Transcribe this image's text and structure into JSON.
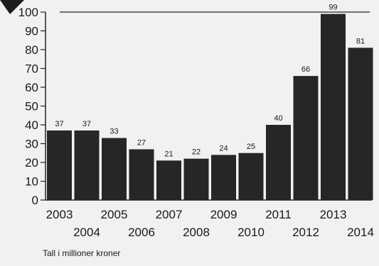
{
  "chart_data": {
    "type": "bar",
    "categories": [
      "2003",
      "2004",
      "2005",
      "2006",
      "2007",
      "2008",
      "2009",
      "2010",
      "2011",
      "2012",
      "2013",
      "2014"
    ],
    "values": [
      37,
      37,
      33,
      27,
      21,
      22,
      24,
      25,
      40,
      66,
      99,
      81
    ],
    "data_labels": [
      "37",
      "37",
      "33",
      "27",
      "21",
      "22",
      "24",
      "25",
      "40",
      "66",
      "99",
      "81"
    ],
    "y_ticks": [
      "0",
      "10",
      "20",
      "30",
      "40",
      "50",
      "60",
      "70",
      "80",
      "90",
      "100"
    ],
    "ylim": [
      0,
      100
    ],
    "grid": false,
    "bar_color": "#262626",
    "title": "",
    "xlabel": "",
    "ylabel": ""
  },
  "footnote": "Tall i millioner kroner"
}
